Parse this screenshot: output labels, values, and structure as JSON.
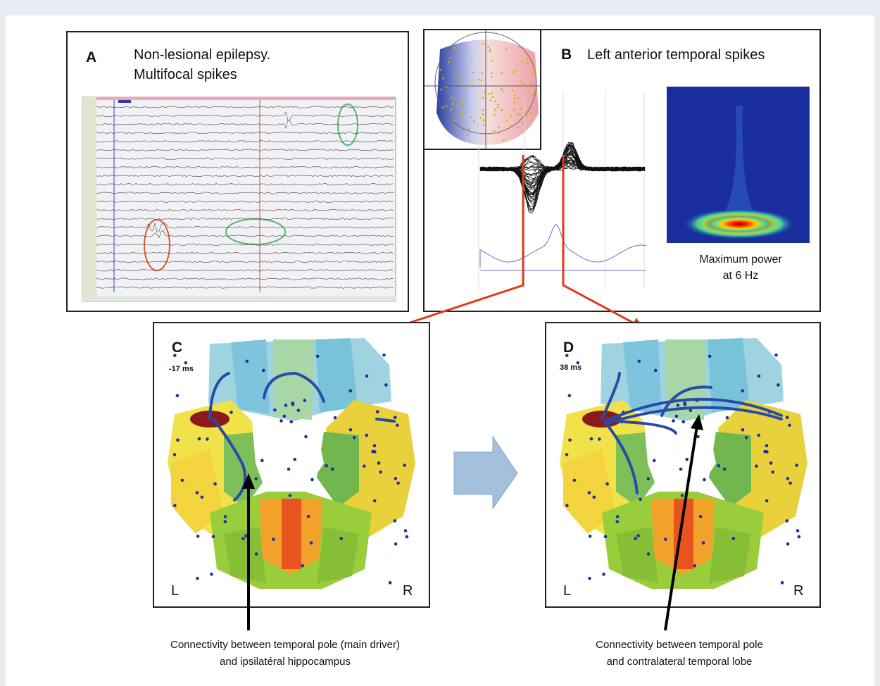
{
  "panel_a": {
    "label": "A",
    "title_lines": [
      "Non-lesional epilepsy.",
      "Multifocal spikes"
    ]
  },
  "panel_b": {
    "label": "B",
    "title": "Left anterior temporal spikes",
    "power_note_lines": [
      "Maximum power",
      "at 6 Hz"
    ]
  },
  "panel_c": {
    "label": "C",
    "time": "-17 ms",
    "left": "L",
    "right": "R",
    "caption_lines": [
      "Connectivity between temporal pole (main driver)",
      "and ipsilatéral hippocampus"
    ]
  },
  "panel_d": {
    "label": "D",
    "time": "38 ms",
    "left": "L",
    "right": "R",
    "caption_lines": [
      "Connectivity between temporal pole",
      "and contralateral temporal lobe"
    ]
  }
}
